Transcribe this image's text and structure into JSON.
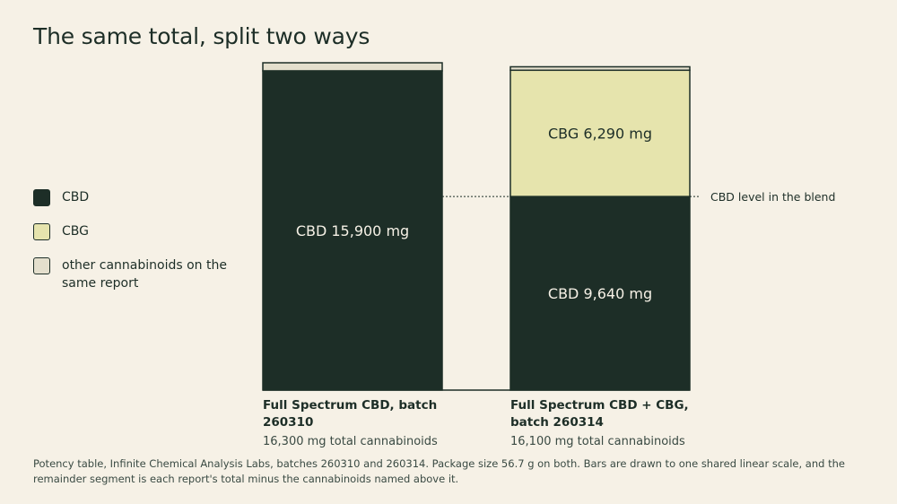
{
  "title": "The same total, split two ways",
  "legend": [
    {
      "label": "CBD",
      "color": "#1d2e27"
    },
    {
      "label": "CBG",
      "color": "#e6e4ad"
    },
    {
      "label": "other cannabinoids on the same report",
      "color": "#e4dfcd"
    }
  ],
  "footer": "Potency table, Infinite Chemical Analysis Labs, batches 260310 and 260314. Package size 56.7 g on both. Bars are drawn to one shared linear scale, and the remainder segment is each report's total minus the cannabinoids named above it.",
  "chart_data": {
    "type": "bar",
    "stacked": true,
    "categories": [
      "Full Spectrum CBD, batch 260310",
      "Full Spectrum CBD + CBG, batch 260314"
    ],
    "category_lines": [
      [
        "Full Spectrum CBD, batch",
        "260310"
      ],
      [
        "Full Spectrum CBD + CBG,",
        "batch 260314"
      ]
    ],
    "totals_labels": [
      "16,300 mg total cannabinoids",
      "16,100 mg total cannabinoids"
    ],
    "totals": [
      16300,
      16100
    ],
    "series": [
      {
        "name": "CBD",
        "values": [
          15900,
          9640
        ],
        "labels": [
          "CBD 15,900 mg",
          "CBD 9,640 mg"
        ],
        "color": "#1d2e27",
        "text_color": "#f6f1e6"
      },
      {
        "name": "CBG",
        "values": [
          0,
          6290
        ],
        "labels": [
          "",
          "CBG 6,290 mg"
        ],
        "color": "#e6e4ad",
        "text_color": "#1d2e27"
      },
      {
        "name": "other cannabinoids on the same report",
        "values": [
          400,
          170
        ],
        "labels": [
          "",
          ""
        ],
        "color": "#e4dfcd",
        "text_color": "#1d2e27"
      }
    ],
    "annotation": "CBD level in the blend",
    "xlabel": "",
    "ylabel": "",
    "ylim": [
      0,
      16300
    ],
    "grid": false,
    "legend_position": "left"
  }
}
